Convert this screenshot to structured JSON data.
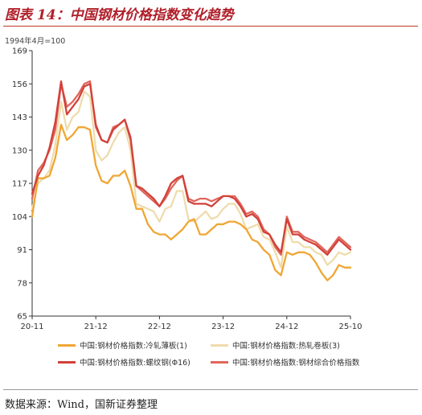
{
  "header": {
    "title": "图表 14：中国钢材价格指数变化趋势"
  },
  "footer": {
    "source": "数据来源：Wind，国新证券整理"
  },
  "chart_data": {
    "type": "line",
    "unit_label": "1994年4月=100",
    "x_ticks": [
      "20-11",
      "21-12",
      "22-12",
      "23-12",
      "24-12",
      "25-10"
    ],
    "y_ticks": [
      65,
      78,
      91,
      104,
      117,
      130,
      143,
      156,
      169
    ],
    "ylim": [
      65,
      169
    ],
    "legend_position": "bottom",
    "grid": false,
    "series": [
      {
        "name": "中国:钢材价格指数:冷轧薄板(1)",
        "color": "#f0a634",
        "values": [
          104,
          119,
          119,
          120,
          127,
          140,
          134,
          136,
          139,
          139,
          138,
          124,
          118,
          117,
          120,
          120,
          122,
          116,
          107,
          107,
          101,
          98,
          97,
          97,
          95,
          97,
          99,
          102,
          103,
          97,
          97,
          99,
          101,
          101,
          102,
          102,
          101,
          99,
          95,
          94,
          91,
          89,
          83,
          81,
          90,
          89,
          90,
          90,
          89,
          86,
          82,
          79,
          81,
          85,
          84,
          84
        ]
      },
      {
        "name": "中国:钢材价格指数:热轧卷板(3)",
        "color": "#efdcad",
        "values": [
          107,
          117,
          119,
          122,
          132,
          149,
          138,
          143,
          145,
          153,
          151,
          130,
          126,
          128,
          133,
          137,
          139,
          130,
          109,
          108,
          107,
          106,
          102,
          107,
          108,
          114,
          114,
          103,
          102,
          104,
          106,
          103,
          104,
          107,
          109,
          109,
          105,
          99,
          100,
          101,
          96,
          95,
          90,
          84,
          100,
          94,
          94,
          92,
          92,
          90,
          89,
          85,
          87,
          90,
          89,
          90
        ]
      },
      {
        "name": "中国:钢材价格指数:螺纹钢(Φ16)",
        "color": "#d2413a",
        "values": [
          113,
          120,
          124,
          131,
          141,
          157,
          144,
          147,
          150,
          155,
          156,
          140,
          134,
          133,
          138,
          140,
          142,
          135,
          116,
          115,
          113,
          111,
          108,
          112,
          117,
          119,
          120,
          110,
          109,
          109,
          109,
          108,
          110,
          112,
          112,
          111,
          108,
          104,
          105,
          103,
          98,
          97,
          93,
          90,
          103,
          97,
          97,
          95,
          94,
          93,
          91,
          89,
          92,
          95,
          93,
          91
        ]
      },
      {
        "name": "中国:钢材价格指数:钢材综合价格指数",
        "color": "#e0665c",
        "values": [
          111,
          122,
          125,
          130,
          138,
          156,
          147,
          149,
          152,
          156,
          157,
          139,
          134,
          133,
          139,
          140,
          142,
          134,
          116,
          114,
          112,
          110,
          108,
          111,
          115,
          118,
          120,
          111,
          110,
          111,
          111,
          110,
          111,
          112,
          112,
          112,
          109,
          105,
          106,
          104,
          99,
          97,
          92,
          89,
          104,
          98,
          98,
          96,
          95,
          94,
          92,
          90,
          93,
          96,
          94,
          92
        ]
      }
    ]
  }
}
